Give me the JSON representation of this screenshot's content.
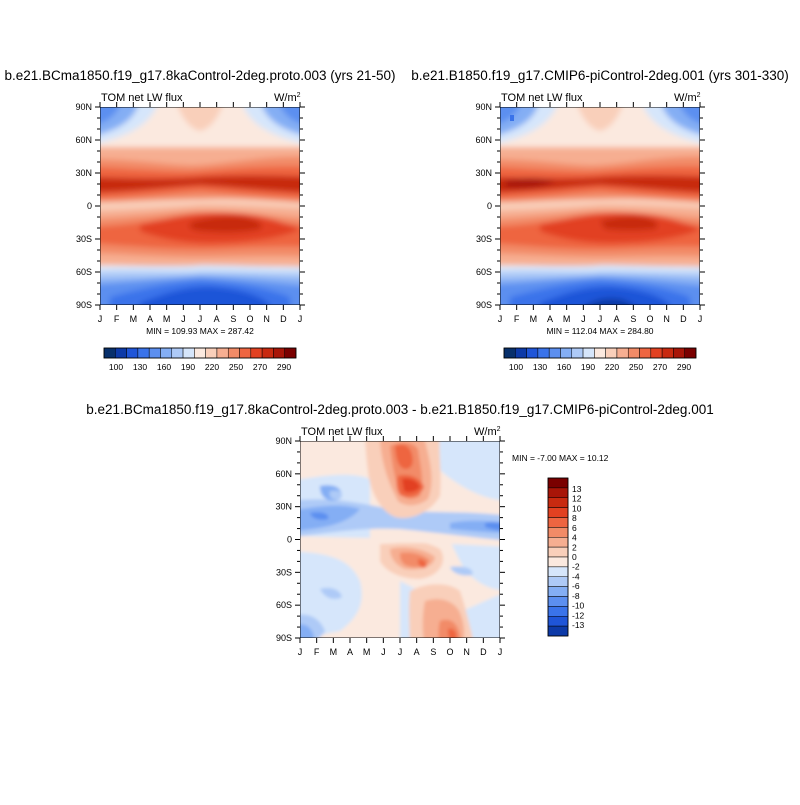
{
  "chart_data": [
    {
      "type": "heatmap",
      "title": "b.e21.BCma1850.f19_g17.8kaControl-2deg.proto.003 (yrs 21-50)",
      "left_label": "TOM net LW flux",
      "units_base": "W/m",
      "units_exp": "2",
      "x_tick_labels": [
        "J",
        "F",
        "M",
        "A",
        "M",
        "J",
        "J",
        "A",
        "S",
        "O",
        "N",
        "D",
        "J"
      ],
      "y_tick_labels": [
        "90N",
        "60N",
        "30N",
        "0",
        "30S",
        "60S",
        "90S"
      ],
      "stats": "MIN = 109.93 MAX = 287.42",
      "min": 109.93,
      "max": 287.42,
      "colorbar": {
        "labels": [
          "100",
          "130",
          "160",
          "190",
          "220",
          "250",
          "270",
          "290"
        ],
        "colors": [
          "#08306b",
          "#0d3aa8",
          "#1f55d8",
          "#3a73ea",
          "#5c8ff0",
          "#84aef4",
          "#aecaf7",
          "#d6e6fb",
          "#fbe9df",
          "#f9cfba",
          "#f6ae91",
          "#f28b67",
          "#ee6541",
          "#e24121",
          "#c82a10",
          "#a81508",
          "#7a0000"
        ]
      }
    },
    {
      "type": "heatmap",
      "title": "b.e21.B1850.f19_g17.CMIP6-piControl-2deg.001 (yrs 301-330)",
      "left_label": "TOM net LW flux",
      "units_base": "W/m",
      "units_exp": "2",
      "x_tick_labels": [
        "J",
        "F",
        "M",
        "A",
        "M",
        "J",
        "J",
        "A",
        "S",
        "O",
        "N",
        "D",
        "J"
      ],
      "y_tick_labels": [
        "90N",
        "60N",
        "30N",
        "0",
        "30S",
        "60S",
        "90S"
      ],
      "stats": "MIN = 112.04 MAX = 284.80",
      "min": 112.04,
      "max": 284.8,
      "colorbar": {
        "labels": [
          "100",
          "130",
          "160",
          "190",
          "220",
          "250",
          "270",
          "290"
        ],
        "colors": [
          "#08306b",
          "#0d3aa8",
          "#1f55d8",
          "#3a73ea",
          "#5c8ff0",
          "#84aef4",
          "#aecaf7",
          "#d6e6fb",
          "#fbe9df",
          "#f9cfba",
          "#f6ae91",
          "#f28b67",
          "#ee6541",
          "#e24121",
          "#c82a10",
          "#a81508",
          "#7a0000"
        ]
      }
    },
    {
      "type": "heatmap",
      "title": "b.e21.BCma1850.f19_g17.8kaControl-2deg.proto.003 - b.e21.B1850.f19_g17.CMIP6-piControl-2deg.001",
      "left_label": "TOM net LW flux",
      "units_base": "W/m",
      "units_exp": "2",
      "x_tick_labels": [
        "J",
        "F",
        "M",
        "A",
        "M",
        "J",
        "J",
        "A",
        "S",
        "O",
        "N",
        "D",
        "J"
      ],
      "y_tick_labels": [
        "90N",
        "60N",
        "30N",
        "0",
        "30S",
        "60S",
        "90S"
      ],
      "stats": "MIN =  -7.00 MAX =  10.12",
      "min": -7.0,
      "max": 10.12,
      "colorbar": {
        "labels": [
          "13",
          "12",
          "10",
          "8",
          "6",
          "4",
          "2",
          "0",
          "-2",
          "-4",
          "-6",
          "-8",
          "-10",
          "-12",
          "-13"
        ],
        "colors": [
          "#7a0000",
          "#a81508",
          "#c82a10",
          "#e24121",
          "#ee6541",
          "#f28b67",
          "#f6ae91",
          "#f9cfba",
          "#fbe9df",
          "#d6e6fb",
          "#aecaf7",
          "#84aef4",
          "#5c8ff0",
          "#3a73ea",
          "#1f55d8",
          "#0d3aa8"
        ]
      }
    }
  ]
}
